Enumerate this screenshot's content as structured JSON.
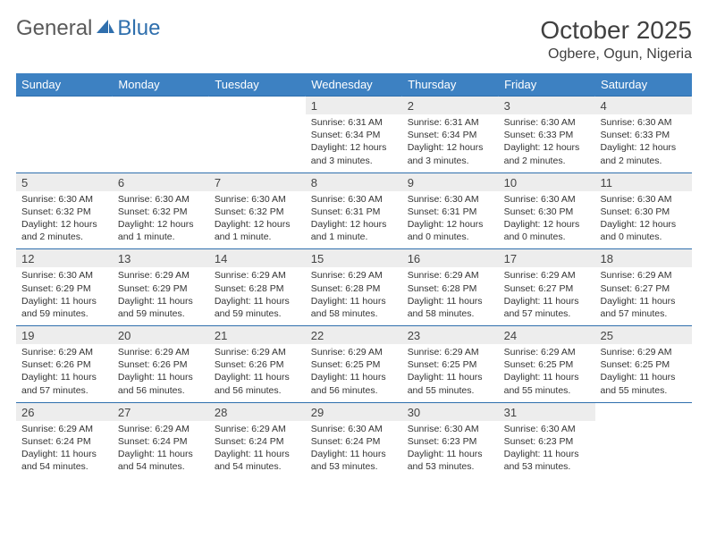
{
  "logo": {
    "part1": "General",
    "part2": "Blue"
  },
  "title": "October 2025",
  "location": "Ogbere, Ogun, Nigeria",
  "colors": {
    "header_bg": "#3d81c2",
    "header_text": "#ffffff",
    "daynum_bg": "#ededed",
    "border": "#2f6fad",
    "logo_gray": "#5a5a5a",
    "logo_blue": "#2f6fad",
    "text": "#333333"
  },
  "day_headers": [
    "Sunday",
    "Monday",
    "Tuesday",
    "Wednesday",
    "Thursday",
    "Friday",
    "Saturday"
  ],
  "weeks": [
    [
      null,
      null,
      null,
      null,
      {
        "n": "1",
        "sr": "6:31 AM",
        "ss": "6:34 PM",
        "dl": "12 hours and 3 minutes."
      },
      {
        "n": "2",
        "sr": "6:31 AM",
        "ss": "6:34 PM",
        "dl": "12 hours and 3 minutes."
      },
      {
        "n": "3",
        "sr": "6:30 AM",
        "ss": "6:33 PM",
        "dl": "12 hours and 2 minutes."
      },
      {
        "n": "4",
        "sr": "6:30 AM",
        "ss": "6:33 PM",
        "dl": "12 hours and 2 minutes."
      }
    ],
    [
      {
        "n": "5",
        "sr": "6:30 AM",
        "ss": "6:32 PM",
        "dl": "12 hours and 2 minutes."
      },
      {
        "n": "6",
        "sr": "6:30 AM",
        "ss": "6:32 PM",
        "dl": "12 hours and 1 minute."
      },
      {
        "n": "7",
        "sr": "6:30 AM",
        "ss": "6:32 PM",
        "dl": "12 hours and 1 minute."
      },
      {
        "n": "8",
        "sr": "6:30 AM",
        "ss": "6:31 PM",
        "dl": "12 hours and 1 minute."
      },
      {
        "n": "9",
        "sr": "6:30 AM",
        "ss": "6:31 PM",
        "dl": "12 hours and 0 minutes."
      },
      {
        "n": "10",
        "sr": "6:30 AM",
        "ss": "6:30 PM",
        "dl": "12 hours and 0 minutes."
      },
      {
        "n": "11",
        "sr": "6:30 AM",
        "ss": "6:30 PM",
        "dl": "12 hours and 0 minutes."
      }
    ],
    [
      {
        "n": "12",
        "sr": "6:30 AM",
        "ss": "6:29 PM",
        "dl": "11 hours and 59 minutes."
      },
      {
        "n": "13",
        "sr": "6:29 AM",
        "ss": "6:29 PM",
        "dl": "11 hours and 59 minutes."
      },
      {
        "n": "14",
        "sr": "6:29 AM",
        "ss": "6:28 PM",
        "dl": "11 hours and 59 minutes."
      },
      {
        "n": "15",
        "sr": "6:29 AM",
        "ss": "6:28 PM",
        "dl": "11 hours and 58 minutes."
      },
      {
        "n": "16",
        "sr": "6:29 AM",
        "ss": "6:28 PM",
        "dl": "11 hours and 58 minutes."
      },
      {
        "n": "17",
        "sr": "6:29 AM",
        "ss": "6:27 PM",
        "dl": "11 hours and 57 minutes."
      },
      {
        "n": "18",
        "sr": "6:29 AM",
        "ss": "6:27 PM",
        "dl": "11 hours and 57 minutes."
      }
    ],
    [
      {
        "n": "19",
        "sr": "6:29 AM",
        "ss": "6:26 PM",
        "dl": "11 hours and 57 minutes."
      },
      {
        "n": "20",
        "sr": "6:29 AM",
        "ss": "6:26 PM",
        "dl": "11 hours and 56 minutes."
      },
      {
        "n": "21",
        "sr": "6:29 AM",
        "ss": "6:26 PM",
        "dl": "11 hours and 56 minutes."
      },
      {
        "n": "22",
        "sr": "6:29 AM",
        "ss": "6:25 PM",
        "dl": "11 hours and 56 minutes."
      },
      {
        "n": "23",
        "sr": "6:29 AM",
        "ss": "6:25 PM",
        "dl": "11 hours and 55 minutes."
      },
      {
        "n": "24",
        "sr": "6:29 AM",
        "ss": "6:25 PM",
        "dl": "11 hours and 55 minutes."
      },
      {
        "n": "25",
        "sr": "6:29 AM",
        "ss": "6:25 PM",
        "dl": "11 hours and 55 minutes."
      }
    ],
    [
      {
        "n": "26",
        "sr": "6:29 AM",
        "ss": "6:24 PM",
        "dl": "11 hours and 54 minutes."
      },
      {
        "n": "27",
        "sr": "6:29 AM",
        "ss": "6:24 PM",
        "dl": "11 hours and 54 minutes."
      },
      {
        "n": "28",
        "sr": "6:29 AM",
        "ss": "6:24 PM",
        "dl": "11 hours and 54 minutes."
      },
      {
        "n": "29",
        "sr": "6:30 AM",
        "ss": "6:24 PM",
        "dl": "11 hours and 53 minutes."
      },
      {
        "n": "30",
        "sr": "6:30 AM",
        "ss": "6:23 PM",
        "dl": "11 hours and 53 minutes."
      },
      {
        "n": "31",
        "sr": "6:30 AM",
        "ss": "6:23 PM",
        "dl": "11 hours and 53 minutes."
      },
      null
    ]
  ],
  "labels": {
    "sunrise": "Sunrise:",
    "sunset": "Sunset:",
    "daylight": "Daylight:"
  }
}
